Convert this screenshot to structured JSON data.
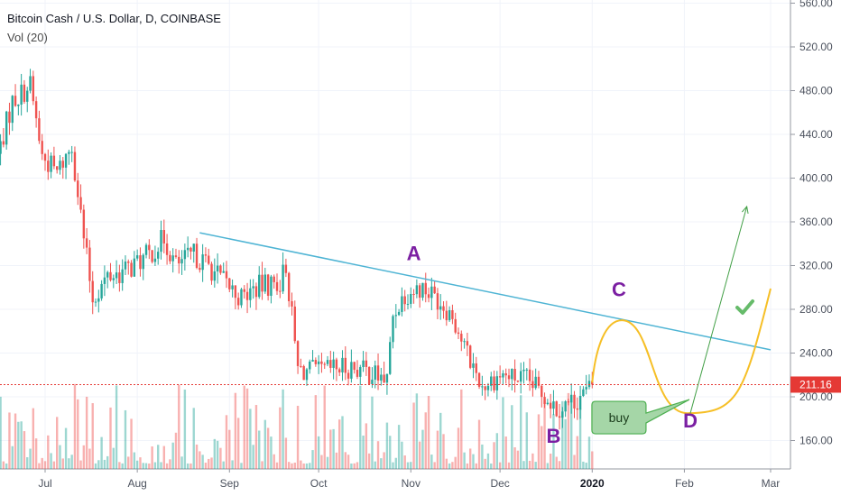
{
  "header": {
    "title": "Bitcoin Cash / U.S. Dollar, D, COINBASE",
    "volume_label": "Vol (20)"
  },
  "colors": {
    "up": "#26a69a",
    "down": "#ef5350",
    "trendline": "#4eb4d4",
    "projection": "#f6bf26",
    "arrow": "#43a047",
    "labels": "#7b1fa2",
    "last_price": "#e53935",
    "grid": "#f0f3fa"
  },
  "chart_data": {
    "type": "candlestick",
    "x_labels": [
      "Jul",
      "Aug",
      "Sep",
      "Oct",
      "Nov",
      "Dec",
      "2020",
      "Feb",
      "Mar"
    ],
    "y_ticks": [
      160,
      200,
      240,
      280,
      320,
      360,
      400,
      440,
      480,
      520,
      560
    ],
    "y_tick_labels": [
      "160.00",
      "200.00",
      "240.00",
      "280.00",
      "320.00",
      "360.00",
      "400.00",
      "440.00",
      "480.00",
      "520.00",
      "560.00"
    ],
    "ylim": [
      140,
      560
    ],
    "last_price": 211.16,
    "last_price_label": "211.16",
    "price_path": [
      [
        "2019-06-15",
        420
      ],
      [
        "2019-06-20",
        470
      ],
      [
        "2019-06-26",
        485
      ],
      [
        "2019-06-30",
        420
      ],
      [
        "2019-07-05",
        405
      ],
      [
        "2019-07-10",
        430
      ],
      [
        "2019-07-14",
        345
      ],
      [
        "2019-07-17",
        290
      ],
      [
        "2019-07-22",
        310
      ],
      [
        "2019-07-28",
        315
      ],
      [
        "2019-08-05",
        330
      ],
      [
        "2019-08-10",
        345
      ],
      [
        "2019-08-14",
        320
      ],
      [
        "2019-08-20",
        330
      ],
      [
        "2019-08-25",
        320
      ],
      [
        "2019-08-29",
        308
      ],
      [
        "2019-09-05",
        290
      ],
      [
        "2019-09-10",
        300
      ],
      [
        "2019-09-18",
        305
      ],
      [
        "2019-09-20",
        320
      ],
      [
        "2019-09-24",
        225
      ],
      [
        "2019-10-01",
        222
      ],
      [
        "2019-10-05",
        225
      ],
      [
        "2019-10-12",
        228
      ],
      [
        "2019-10-20",
        220
      ],
      [
        "2019-10-24",
        215
      ],
      [
        "2019-10-26",
        275
      ],
      [
        "2019-10-30",
        295
      ],
      [
        "2019-11-05",
        300
      ],
      [
        "2019-11-10",
        290
      ],
      [
        "2019-11-15",
        275
      ],
      [
        "2019-11-19",
        245
      ],
      [
        "2019-11-25",
        210
      ],
      [
        "2019-12-01",
        220
      ],
      [
        "2019-12-10",
        215
      ],
      [
        "2019-12-17",
        200
      ],
      [
        "2019-12-20",
        190
      ],
      [
        "2019-12-25",
        195
      ],
      [
        "2019-12-31",
        206
      ],
      [
        "2020-01-01",
        211
      ]
    ],
    "trendline": [
      [
        "2019-08-22",
        350
      ],
      [
        "2020-03-01",
        243
      ]
    ],
    "projection_path": [
      [
        "2020-01-01",
        213
      ],
      [
        "2020-01-11",
        270
      ],
      [
        "2020-02-02",
        185
      ],
      [
        "2020-03-01",
        299
      ]
    ],
    "arrow": [
      [
        "2020-02-03",
        185
      ],
      [
        "2020-02-22",
        374
      ]
    ],
    "volume_max": 115,
    "annotations": [
      {
        "text": "A",
        "date": "2019-11-02",
        "price": 325
      },
      {
        "text": "B",
        "date": "2019-12-19",
        "price": 158
      },
      {
        "text": "C",
        "date": "2020-01-10",
        "price": 292
      },
      {
        "text": "D",
        "date": "2020-02-03",
        "price": 172
      },
      {
        "text": "buy",
        "date": "2020-01-10",
        "price": 181
      }
    ]
  }
}
